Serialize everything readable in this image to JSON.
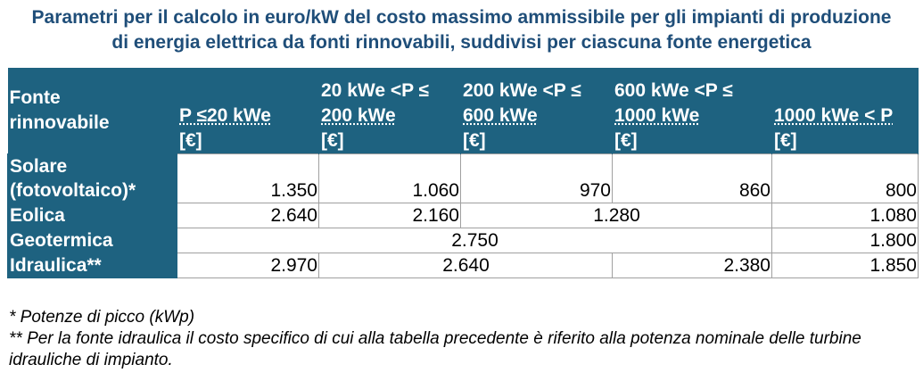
{
  "title": {
    "line1": "Parametri per il calcolo in euro/kW del costo massimo ammissibile per gli impianti di produzione",
    "line2": "di energia elettrica da fonti rinnovabili, suddivisi per ciascuna fonte energetica"
  },
  "table": {
    "headers": {
      "fonte": [
        "Fonte",
        "rinnovabile"
      ],
      "col1": [
        "P ≤20 kWe",
        "[€]"
      ],
      "col2": [
        "20 kWe <P ≤",
        "200 kWe",
        "[€]"
      ],
      "col3": [
        "200 kWe <P ≤",
        "600 kWe",
        "[€]"
      ],
      "col4": [
        "600 kWe <P ≤",
        "1000 kWe",
        "[€]"
      ],
      "col5": [
        "1000 kWe < P",
        "[€]"
      ]
    },
    "rows": {
      "solare": {
        "label": [
          "Solare",
          "(fotovoltaico)*"
        ],
        "values": [
          "1.350",
          "1.060",
          "970",
          "860",
          "800"
        ]
      },
      "eolica": {
        "label": "Eolica",
        "values": [
          "2.640",
          "2.160",
          "1.280",
          "1.080"
        ]
      },
      "geotermica": {
        "label": "Geotermica",
        "values": [
          "2.750",
          "1.800"
        ]
      },
      "idraulica": {
        "label": "Idraulica**",
        "values": [
          "2.970",
          "2.640",
          "2.380",
          "1.850"
        ]
      }
    }
  },
  "notes": {
    "note1": "* Potenze di picco (kWp)",
    "note2": "** Per la fonte idraulica il costo specifico di cui alla tabella precedente è riferito alla potenza nominale delle turbine idrauliche di impianto."
  }
}
